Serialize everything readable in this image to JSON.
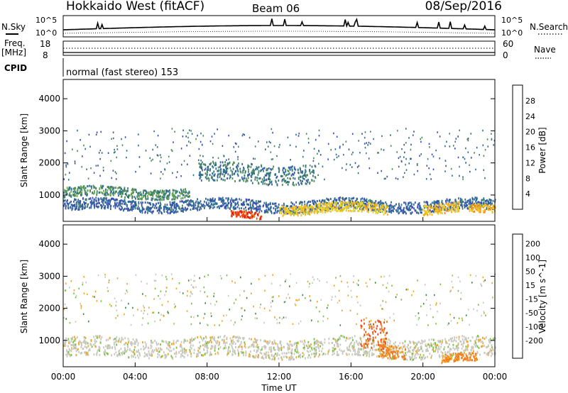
{
  "header": {
    "station": "Hokkaido West (fitACF)",
    "beam": "Beam 06",
    "date": "08/Sep/2016"
  },
  "summary": {
    "nsky_label": "N.Sky",
    "nsearch_label": "N.Search",
    "freq_label_line1": "Freq.",
    "freq_label_line2": "[MHz]",
    "nave_label": "Nave",
    "cpid_label": "CPID",
    "cpid_text": "normal (fast stereo) 153",
    "noise_ticks": [
      "10^5",
      "10^0"
    ],
    "freq_ticks": [
      "18",
      "8"
    ],
    "nave_ticks": [
      "60",
      "0"
    ]
  },
  "chart_data": [
    {
      "type": "heatmap",
      "name": "Power",
      "ylabel": "Slant Range [km]",
      "ylim": [
        180,
        4600
      ],
      "y_ticks": [
        1000,
        2000,
        3000,
        4000
      ],
      "xlabel": "Time UT",
      "x_ticks": [
        "00:00",
        "04:00",
        "08:00",
        "12:00",
        "16:00",
        "20:00",
        "00:00"
      ],
      "xlim_hours": [
        0,
        24
      ],
      "colorbar": {
        "label": "Power [dB]",
        "range": [
          0,
          32
        ],
        "ticks": [
          4,
          8,
          12,
          16,
          20,
          24,
          28
        ],
        "colors": [
          "#1c2bd6",
          "#3750b4",
          "#2f6e8e",
          "#4a8a5a",
          "#6aa84f",
          "#a8cc33",
          "#e6d21a",
          "#f5b020",
          "#f08a1e",
          "#ea4a1a",
          "#d9150f"
        ]
      },
      "features": [
        {
          "t_start": 0,
          "t_end": 7,
          "range_center": 1100,
          "range_width": 300,
          "power_db": 10
        },
        {
          "t_start": 0,
          "t_end": 24,
          "range_center": 700,
          "range_width": 350,
          "power_db": 6
        },
        {
          "t_start": 9.3,
          "t_end": 11,
          "range_center": 400,
          "range_width": 200,
          "power_db": 28
        },
        {
          "t_start": 12,
          "t_end": 18,
          "range_center": 600,
          "range_width": 300,
          "power_db": 20
        },
        {
          "t_start": 20,
          "t_end": 22,
          "range_center": 600,
          "range_width": 300,
          "power_db": 21
        },
        {
          "t_start": 22.5,
          "t_end": 24,
          "range_center": 550,
          "range_width": 250,
          "power_db": 22
        },
        {
          "t_start": 7.5,
          "t_end": 14,
          "range_center": 1700,
          "range_width": 600,
          "power_db": 8
        }
      ]
    },
    {
      "type": "heatmap",
      "name": "Velocity",
      "ylabel": "Slant Range [km]",
      "ylim": [
        180,
        4600
      ],
      "y_ticks": [
        1000,
        2000,
        3000,
        4000
      ],
      "xlabel": "Time UT",
      "x_ticks": [
        "00:00",
        "04:00",
        "08:00",
        "12:00",
        "16:00",
        "20:00",
        "00:00"
      ],
      "xlim_hours": [
        0,
        24
      ],
      "colorbar": {
        "label": "Velocity [m s^-1]",
        "ticks": [
          "200",
          "100",
          "50",
          "15",
          "-15",
          "-50",
          "-100",
          "-200"
        ],
        "colors": [
          "#1a2ad0",
          "#254d8c",
          "#3f8a4a",
          "#79c23e",
          "#c8c8c0",
          "#f0a82a",
          "#f07f1e",
          "#ea4a1a",
          "#d9150f"
        ]
      },
      "features": [
        {
          "t_start": 0,
          "t_end": 24,
          "range_center": 800,
          "range_width": 600,
          "velocity_ms": 0
        },
        {
          "t_start": 16.5,
          "t_end": 18,
          "range_center": 1200,
          "range_width": 900,
          "velocity_ms": -100
        },
        {
          "t_start": 17.5,
          "t_end": 19,
          "range_center": 700,
          "range_width": 400,
          "velocity_ms": -60
        },
        {
          "t_start": 21,
          "t_end": 23,
          "range_center": 450,
          "range_width": 250,
          "velocity_ms": -60
        }
      ]
    }
  ]
}
